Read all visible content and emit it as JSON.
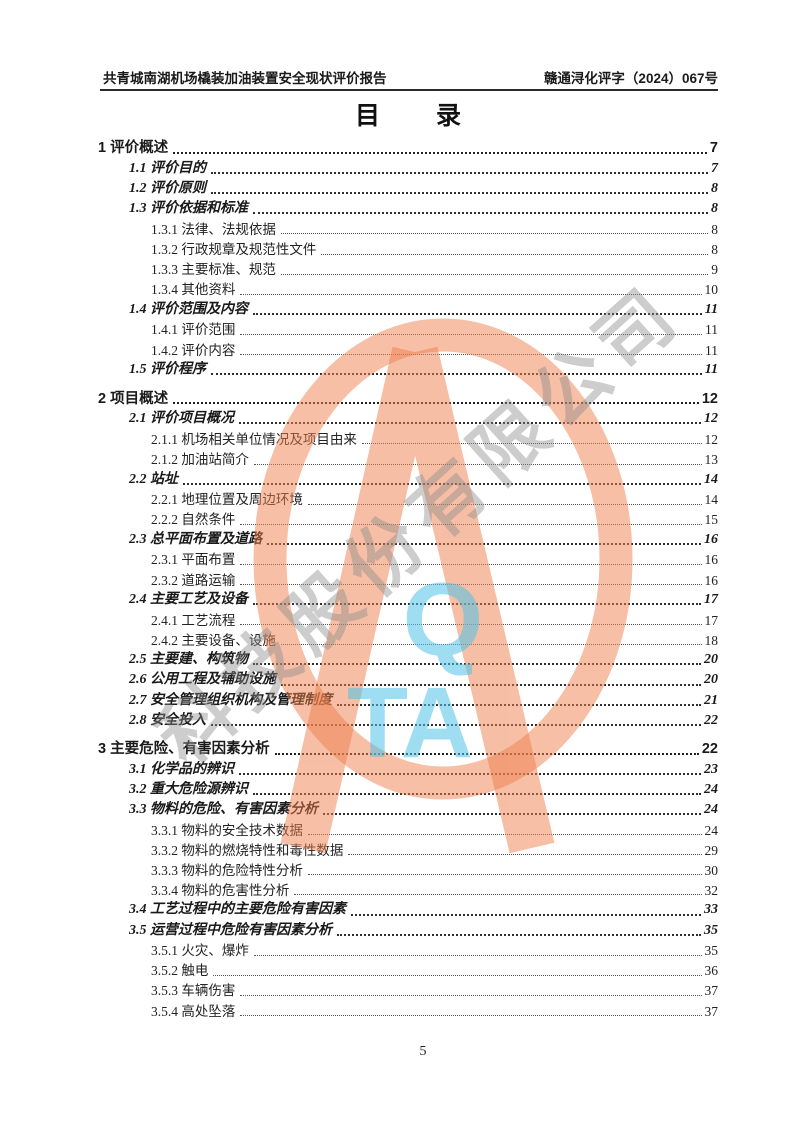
{
  "document": {
    "header": {
      "report_title": "共青城南湖机场橇装加油装置安全现状评价报告",
      "doc_number": "赣通浔化评字（2024）067号"
    },
    "title": "目　　录",
    "footer_page_number": "5"
  },
  "toc": {
    "sections": [
      {
        "entries": [
          {
            "level": 1,
            "label": "1 评价概述",
            "page": "7"
          },
          {
            "level": 2,
            "label": "1.1 评价目的",
            "page": "7"
          },
          {
            "level": 2,
            "label": "1.2 评价原则",
            "page": "8"
          },
          {
            "level": 2,
            "label": "1.3 评价依据和标准",
            "page": "8"
          },
          {
            "level": 3,
            "label": "1.3.1 法律、法规依据",
            "page": "8"
          },
          {
            "level": 3,
            "label": "1.3.2 行政规章及规范性文件",
            "page": "8"
          },
          {
            "level": 3,
            "label": "1.3.3 主要标准、规范",
            "page": "9"
          },
          {
            "level": 3,
            "label": "1.3.4 其他资料",
            "page": "10"
          },
          {
            "level": 2,
            "label": "1.4 评价范围及内容",
            "page": "11"
          },
          {
            "level": 3,
            "label": "1.4.1 评价范围",
            "page": "11"
          },
          {
            "level": 3,
            "label": "1.4.2 评价内容",
            "page": "11"
          },
          {
            "level": 2,
            "label": "1.5 评价程序",
            "page": "11"
          }
        ]
      },
      {
        "entries": [
          {
            "level": 1,
            "label": "2 项目概述",
            "page": "12"
          },
          {
            "level": 2,
            "label": "2.1 评价项目概况",
            "page": "12"
          },
          {
            "level": 3,
            "label": "2.1.1 机场相关单位情况及项目由来",
            "page": "12"
          },
          {
            "level": 3,
            "label": "2.1.2 加油站简介",
            "page": "13"
          },
          {
            "level": 2,
            "label": "2.2 站址",
            "page": "14"
          },
          {
            "level": 3,
            "label": "2.2.1 地理位置及周边环境",
            "page": "14"
          },
          {
            "level": 3,
            "label": "2.2.2 自然条件",
            "page": "15"
          },
          {
            "level": 2,
            "label": "2.3 总平面布置及道路",
            "page": "16"
          },
          {
            "level": 3,
            "label": "2.3.1 平面布置",
            "page": "16"
          },
          {
            "level": 3,
            "label": "2.3.2 道路运输",
            "page": "16"
          },
          {
            "level": 2,
            "label": "2.4 主要工艺及设备",
            "page": "17"
          },
          {
            "level": 3,
            "label": "2.4.1 工艺流程",
            "page": "17"
          },
          {
            "level": 3,
            "label": "2.4.2 主要设备、设施",
            "page": "18"
          },
          {
            "level": 2,
            "label": "2.5 主要建、构筑物",
            "page": "20"
          },
          {
            "level": 2,
            "label": "2.6 公用工程及辅助设施",
            "page": "20"
          },
          {
            "level": 2,
            "label": "2.7 安全管理组织机构及管理制度",
            "page": "21"
          },
          {
            "level": 2,
            "label": "2.8 安全投入",
            "page": "22"
          }
        ]
      },
      {
        "entries": [
          {
            "level": 1,
            "label": "3 主要危险、有害因素分析",
            "page": "22"
          },
          {
            "level": 2,
            "label": "3.1 化学品的辨识",
            "page": "23"
          },
          {
            "level": 2,
            "label": "3.2 重大危险源辨识",
            "page": "24"
          },
          {
            "level": 2,
            "label": "3.3 物料的危险、有害因素分析",
            "page": "24"
          },
          {
            "level": 3,
            "label": "3.3.1 物料的安全技术数据",
            "page": "24"
          },
          {
            "level": 3,
            "label": "3.3.2 物料的燃烧特性和毒性数据",
            "page": "29"
          },
          {
            "level": 3,
            "label": "3.3.3 物料的危险特性分析",
            "page": "30"
          },
          {
            "level": 3,
            "label": "3.3.4 物料的危害性分析",
            "page": "32"
          },
          {
            "level": 2,
            "label": "3.4 工艺过程中的主要危险有害因素",
            "page": "33"
          },
          {
            "level": 2,
            "label": "3.5 运营过程中危险有害因素分析",
            "page": "35"
          },
          {
            "level": 3,
            "label": "3.5.1 火灾、爆炸",
            "page": "35"
          },
          {
            "level": 3,
            "label": "3.5.2 触电",
            "page": "36"
          },
          {
            "level": 3,
            "label": "3.5.3 车辆伤害",
            "page": "37"
          },
          {
            "level": 3,
            "label": "3.5.4 高处坠落",
            "page": "37"
          }
        ]
      }
    ]
  },
  "watermark": {
    "company_text": "科技股份有限公司",
    "letter_q": "Q",
    "letter_ta": "TA",
    "ring_color": "#ef7f4e",
    "letters_color": "#4fc3e8",
    "gray_text_color": "#8a8a8a"
  }
}
